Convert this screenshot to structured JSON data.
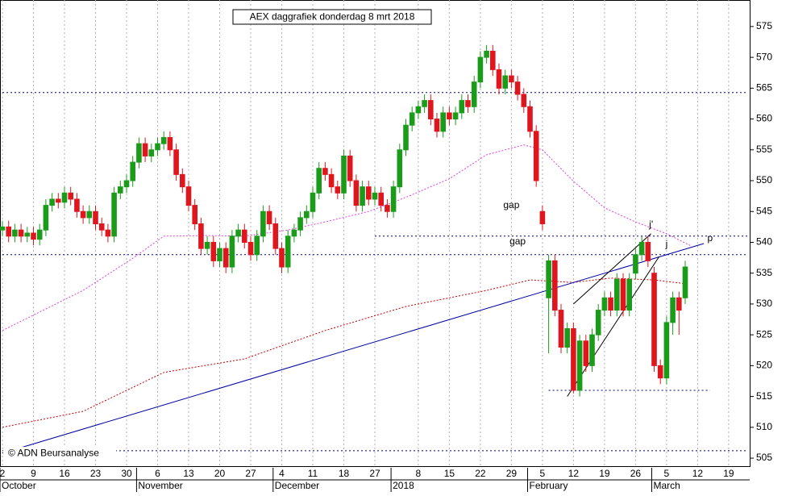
{
  "chart_data": {
    "type": "candlestick",
    "title": "AEX daggrafiek donderdag 8 mrt 2018",
    "credit": "© ADN Beursanalyse",
    "categories": [
      "2",
      null,
      null,
      null,
      null,
      "9",
      null,
      null,
      null,
      null,
      "16",
      null,
      null,
      null,
      null,
      "23",
      null,
      null,
      null,
      null,
      "30",
      null,
      null,
      null,
      null,
      "6",
      null,
      null,
      null,
      null,
      "13",
      null,
      null,
      null,
      null,
      "20",
      null,
      null,
      null,
      null,
      "27",
      null,
      null,
      null,
      null,
      "4",
      null,
      null,
      null,
      null,
      "11",
      null,
      null,
      null,
      null,
      "18",
      null,
      null,
      null,
      null,
      "27",
      null,
      null,
      null,
      null,
      null,
      null,
      "8",
      null,
      null,
      null,
      null,
      "15",
      null,
      null,
      null,
      null,
      "22",
      null,
      null,
      null,
      null,
      "29",
      null,
      null,
      null,
      null,
      "5",
      null,
      null,
      null,
      null,
      "12",
      null,
      null,
      null,
      null,
      "19",
      null,
      null,
      null,
      null,
      "26",
      null,
      null,
      null,
      null,
      "5",
      null,
      null,
      null,
      null,
      "12",
      null,
      null,
      null,
      null,
      "19",
      null,
      null,
      null
    ],
    "months": [
      {
        "label": "October",
        "start": 0
      },
      {
        "label": "November",
        "start": 22
      },
      {
        "label": "December",
        "start": 44
      },
      {
        "label": "2018",
        "start": 63
      },
      {
        "label": "February",
        "start": 85
      },
      {
        "label": "March",
        "start": 105
      }
    ],
    "open": [
      542,
      542.5,
      541,
      542,
      541,
      541.5,
      540.5,
      542,
      546,
      547,
      546.5,
      548,
      547,
      545,
      544,
      545,
      543,
      542,
      541,
      548,
      549,
      550,
      553,
      556,
      554,
      555,
      556,
      557,
      555,
      551,
      549,
      546,
      543,
      539,
      540,
      537,
      539,
      536,
      541,
      542,
      540,
      538,
      541,
      545,
      543,
      539,
      536,
      541,
      542,
      544,
      545,
      548,
      552,
      551,
      549,
      548,
      554,
      550,
      546,
      549,
      547,
      548,
      546,
      545,
      549,
      555,
      559,
      561,
      562,
      563,
      560,
      558,
      561,
      560,
      561,
      563,
      562,
      566,
      570,
      571,
      568,
      565,
      567,
      566,
      564,
      562,
      558,
      545,
      531,
      537,
      529,
      523,
      526,
      516,
      524,
      520,
      525,
      529,
      531,
      529,
      534,
      529,
      535,
      538,
      540,
      535,
      520,
      518,
      527,
      531,
      531,
      null,
      null,
      null,
      null,
      null,
      null,
      null,
      null,
      null,
      null
    ],
    "high": [
      543.5,
      543.5,
      543,
      543,
      542.5,
      542.5,
      543,
      547,
      548,
      548,
      549,
      549,
      548,
      546,
      546,
      546,
      544,
      543,
      549,
      550,
      551,
      554,
      557,
      557,
      556,
      557,
      558,
      558,
      556,
      552,
      550,
      547,
      544,
      541,
      541,
      540,
      540,
      542,
      543,
      543,
      541,
      542,
      546,
      546,
      544,
      540,
      542,
      543,
      545,
      546,
      549,
      553,
      553,
      552,
      550,
      555,
      555,
      551,
      550,
      550,
      549,
      549,
      547,
      550,
      556,
      560,
      562,
      563,
      564,
      564,
      561,
      562,
      562,
      562,
      564,
      564,
      567,
      571,
      572,
      572,
      569,
      568,
      568,
      567,
      565,
      563,
      559,
      546,
      538,
      538,
      530,
      527,
      527,
      525,
      525,
      526,
      530,
      532,
      532,
      535,
      535,
      535,
      539,
      541,
      541,
      536,
      521,
      528,
      532,
      532,
      537,
      null,
      null,
      null,
      null,
      null,
      null,
      null,
      null,
      null,
      null
    ],
    "low": [
      541,
      540,
      540,
      540,
      540,
      539.5,
      539.5,
      541,
      545,
      545.5,
      545.5,
      546,
      544,
      543,
      543,
      542,
      541,
      540,
      540,
      547,
      548,
      549,
      552,
      553,
      553,
      554,
      555,
      554,
      550,
      548,
      545,
      542,
      538,
      538,
      536,
      536,
      535,
      535,
      540,
      539,
      537,
      537,
      540,
      542,
      538,
      535,
      535,
      540,
      541,
      543,
      544,
      547,
      550,
      548,
      547,
      547,
      549,
      545,
      545,
      546,
      546,
      545,
      544,
      544,
      548,
      554,
      558,
      560,
      561,
      559,
      557,
      557,
      559,
      559,
      560,
      561,
      561,
      565,
      569,
      567,
      564,
      564,
      565,
      563,
      561,
      557,
      549,
      542,
      522,
      528,
      522,
      522,
      515.5,
      515,
      519,
      519,
      524,
      528,
      528,
      528,
      528,
      528,
      534,
      537,
      536,
      519,
      517,
      517,
      525,
      525,
      530,
      null,
      null,
      null,
      null,
      null,
      null,
      null,
      null,
      null,
      null
    ],
    "close": [
      542.5,
      541,
      542,
      541,
      541.5,
      540.5,
      542,
      546,
      547,
      546.5,
      548,
      547,
      545,
      544,
      545,
      543,
      542,
      541,
      548,
      549,
      550,
      553,
      556,
      554,
      555,
      556,
      557,
      555,
      551,
      549,
      546,
      543,
      539,
      540,
      537,
      539,
      536,
      541,
      542,
      540,
      538,
      541,
      545,
      543,
      539,
      536,
      541,
      542,
      544,
      545,
      548,
      552,
      551,
      549,
      548,
      554,
      550,
      546,
      549,
      547,
      548,
      546,
      545,
      549,
      555,
      559,
      561,
      562,
      563,
      560,
      558,
      561,
      560,
      561,
      563,
      562,
      566,
      570,
      571,
      568,
      565,
      567,
      566,
      564,
      562,
      558,
      550,
      543,
      537,
      529,
      523,
      526,
      516,
      524,
      520,
      525,
      529,
      531,
      529,
      534,
      529,
      534,
      538,
      540,
      537,
      520,
      518,
      527,
      531,
      529,
      536,
      null,
      null,
      null,
      null,
      null,
      null,
      null,
      null,
      null,
      null
    ],
    "up_color": "#1a9c1a",
    "down_color": "#e0161e",
    "ylim": [
      503.7,
      579.3
    ],
    "yticks": [
      505,
      510,
      515,
      520,
      525,
      530,
      535,
      540,
      545,
      550,
      555,
      560,
      565,
      570,
      575
    ],
    "grid": true,
    "lines": [
      {
        "color": "#e040e0",
        "dash": "2,2",
        "x": [
          0,
          13,
          21,
          26,
          33,
          39,
          46,
          52,
          59,
          65,
          72,
          78,
          84,
          87,
          92,
          97,
          102,
          107,
          111
        ],
        "values": [
          525.7,
          532.2,
          537.4,
          541,
          541.1,
          541,
          542,
          543.3,
          545,
          547.3,
          550.3,
          554.2,
          555.8,
          555,
          549.9,
          545.6,
          543.3,
          541.4,
          539.4
        ]
      },
      {
        "color": "#c00000",
        "dash": "2,2",
        "x": [
          0,
          13,
          26,
          39,
          52,
          65,
          78,
          85,
          92,
          98,
          105,
          110
        ],
        "values": [
          510,
          512.6,
          518.9,
          521.1,
          525.7,
          529.6,
          532.2,
          533.9,
          533.5,
          534.2,
          533.9,
          533.3
        ]
      },
      {
        "color": "#0000a0",
        "dash": "none",
        "x": [
          0,
          113
        ],
        "values": [
          505.8,
          539.8
        ]
      },
      {
        "color": "#000000",
        "dash": "none",
        "x": [
          91,
          105.8
        ],
        "values": [
          515,
          537.7
        ]
      },
      {
        "color": "#000000",
        "dash": "none",
        "x": [
          92,
          104.5
        ],
        "values": [
          530,
          541.4
        ]
      },
      {
        "color": "#000080",
        "dash": "2,3",
        "x": [
          0,
          120
        ],
        "values": [
          564.3,
          564.3
        ]
      },
      {
        "color": "#000080",
        "dash": "2,3",
        "x": [
          60,
          120
        ],
        "values": [
          541,
          541
        ]
      },
      {
        "color": "#000080",
        "dash": "2,3",
        "x": [
          0,
          120
        ],
        "values": [
          538,
          538
        ]
      },
      {
        "color": "#000080",
        "dash": "2,3",
        "x": [
          88,
          114
        ],
        "values": [
          516,
          516
        ]
      },
      {
        "color": "#000080",
        "dash": "2,3",
        "x": [
          0,
          120
        ],
        "values": [
          506.2,
          506.2
        ]
      }
    ],
    "annotations": [
      "gap",
      "gap",
      "j'",
      "j",
      "p"
    ]
  }
}
